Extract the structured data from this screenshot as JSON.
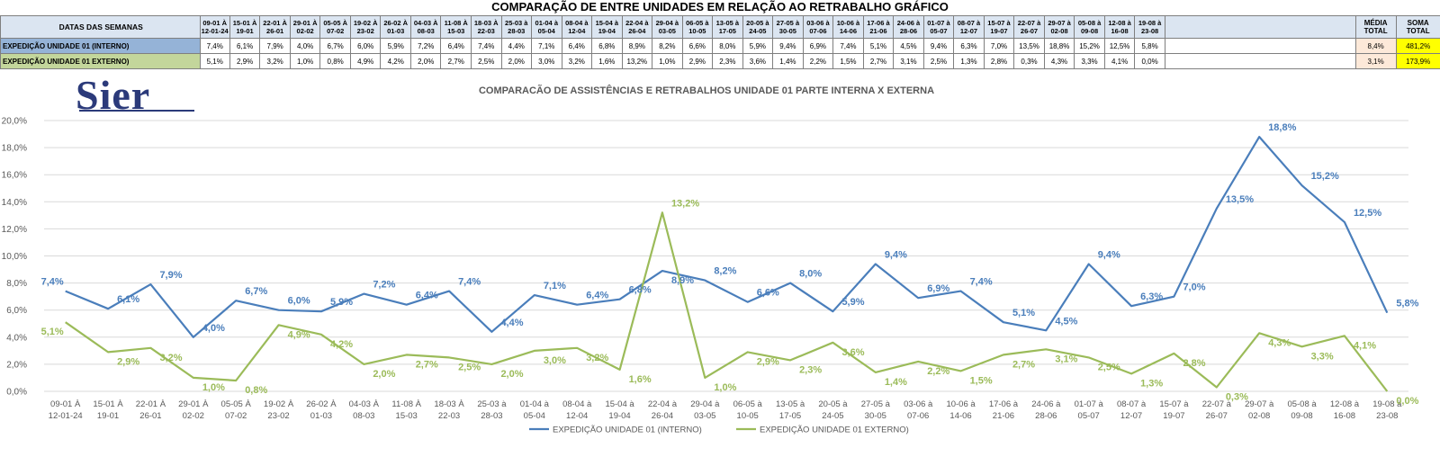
{
  "sheet_title": "COMPARAÇÃO DE ENTRE UNIDADES EM RELAÇÃO AO RETRABALHO GRÁFICO",
  "table": {
    "header_label": "DATAS DAS SEMANAS",
    "week_headers": [
      [
        "09-01 À",
        "12-01-24"
      ],
      [
        "15-01 À",
        "19-01"
      ],
      [
        "22-01 À",
        "26-01"
      ],
      [
        "29-01 À",
        "02-02"
      ],
      [
        "05-05 À",
        "07-02"
      ],
      [
        "19-02 À",
        "23-02"
      ],
      [
        "26-02 À",
        "01-03"
      ],
      [
        "04-03 À",
        "08-03"
      ],
      [
        "11-08 À",
        "15-03"
      ],
      [
        "18-03 À",
        "22-03"
      ],
      [
        "25-03 à",
        "28-03"
      ],
      [
        "01-04 à",
        "05-04"
      ],
      [
        "08-04 à",
        "12-04"
      ],
      [
        "15-04 à",
        "19-04"
      ],
      [
        "22-04 à",
        "26-04"
      ],
      [
        "29-04 à",
        "03-05"
      ],
      [
        "06-05 à",
        "10-05"
      ],
      [
        "13-05 à",
        "17-05"
      ],
      [
        "20-05 à",
        "24-05"
      ],
      [
        "27-05 à",
        "30-05"
      ],
      [
        "03-06 à",
        "07-06"
      ],
      [
        "10-06 à",
        "14-06"
      ],
      [
        "17-06 à",
        "21-06"
      ],
      [
        "24-06 à",
        "28-06"
      ],
      [
        "01-07 à",
        "05-07"
      ],
      [
        "08-07 à",
        "12-07"
      ],
      [
        "15-07 à",
        "19-07"
      ],
      [
        "22-07 à",
        "26-07"
      ],
      [
        "29-07 à",
        "02-08"
      ],
      [
        "05-08 à",
        "09-08"
      ],
      [
        "12-08 à",
        "16-08"
      ],
      [
        "19-08 à",
        "23-08"
      ]
    ],
    "total_header": [
      "MÉDIA",
      "TOTAL"
    ],
    "sum_header": [
      "SOMA",
      "TOTAL"
    ],
    "rows": [
      {
        "label": "EXPEDIÇÃO UNIDADE 01 (INTERNO)",
        "cells": [
          "7,4%",
          "6,1%",
          "7,9%",
          "4,0%",
          "6,7%",
          "6,0%",
          "5,9%",
          "7,2%",
          "6,4%",
          "7,4%",
          "4,4%",
          "7,1%",
          "6,4%",
          "6,8%",
          "8,9%",
          "8,2%",
          "6,6%",
          "8,0%",
          "5,9%",
          "9,4%",
          "6,9%",
          "7,4%",
          "5,1%",
          "4,5%",
          "9,4%",
          "6,3%",
          "7,0%",
          "13,5%",
          "18,8%",
          "15,2%",
          "12,5%",
          "5,8%"
        ],
        "avg": "8,4%",
        "sum": "481,2%"
      },
      {
        "label": "EXPEDIÇÃO UNIDADE 01 EXTERNO)",
        "cells": [
          "5,1%",
          "2,9%",
          "3,2%",
          "1,0%",
          "0,8%",
          "4,9%",
          "4,2%",
          "2,0%",
          "2,7%",
          "2,5%",
          "2,0%",
          "3,0%",
          "3,2%",
          "1,6%",
          "13,2%",
          "1,0%",
          "2,9%",
          "2,3%",
          "3,6%",
          "1,4%",
          "2,2%",
          "1,5%",
          "2,7%",
          "3,1%",
          "2,5%",
          "1,3%",
          "2,8%",
          "0,3%",
          "4,3%",
          "3,3%",
          "4,1%",
          "0,0%"
        ],
        "avg": "3,1%",
        "sum": "173,9%"
      }
    ]
  },
  "logo_text": "Sier",
  "chart_data": {
    "type": "line",
    "title": "COMPARACÃO DE ASSISTÊNCIAS E RETRABALHOS UNIDADE 01 PARTE INTERNA X EXTERNA",
    "categories": [
      [
        "09-01 À",
        "12-01-24"
      ],
      [
        "15-01 À",
        "19-01"
      ],
      [
        "22-01 À",
        "26-01"
      ],
      [
        "29-01 À",
        "02-02"
      ],
      [
        "05-05 À",
        "07-02"
      ],
      [
        "19-02 À",
        "23-02"
      ],
      [
        "26-02 À",
        "01-03"
      ],
      [
        "04-03 À",
        "08-03"
      ],
      [
        "11-08 À",
        "15-03"
      ],
      [
        "18-03 À",
        "22-03"
      ],
      [
        "25-03 à",
        "28-03"
      ],
      [
        "01-04 à",
        "05-04"
      ],
      [
        "08-04 à",
        "12-04"
      ],
      [
        "15-04 à",
        "19-04"
      ],
      [
        "22-04 à",
        "26-04"
      ],
      [
        "29-04 à",
        "03-05"
      ],
      [
        "06-05 à",
        "10-05"
      ],
      [
        "13-05 à",
        "17-05"
      ],
      [
        "20-05 à",
        "24-05"
      ],
      [
        "27-05 à",
        "30-05"
      ],
      [
        "03-06 à",
        "07-06"
      ],
      [
        "10-06 à",
        "14-06"
      ],
      [
        "17-06 à",
        "21-06"
      ],
      [
        "24-06 à",
        "28-06"
      ],
      [
        "01-07 à",
        "05-07"
      ],
      [
        "08-07 à",
        "12-07"
      ],
      [
        "15-07 à",
        "19-07"
      ],
      [
        "22-07 à",
        "26-07"
      ],
      [
        "29-07 à",
        "02-08"
      ],
      [
        "05-08 à",
        "09-08"
      ],
      [
        "12-08 à",
        "16-08"
      ],
      [
        "19-08 à",
        "23-08"
      ]
    ],
    "ylim": [
      0,
      20
    ],
    "yticks": [
      "0,0%",
      "2,0%",
      "4,0%",
      "6,0%",
      "8,0%",
      "10,0%",
      "12,0%",
      "14,0%",
      "16,0%",
      "18,0%",
      "20,0%"
    ],
    "grid": true,
    "legend_position": "bottom",
    "series": [
      {
        "name": "EXPEDIÇÃO UNIDADE 01 (INTERNO)",
        "color": "#4a7ebb",
        "values": [
          7.4,
          6.1,
          7.9,
          4.0,
          6.7,
          6.0,
          5.9,
          7.2,
          6.4,
          7.4,
          4.4,
          7.1,
          6.4,
          6.8,
          8.9,
          8.2,
          6.6,
          8.0,
          5.9,
          9.4,
          6.9,
          7.4,
          5.1,
          4.5,
          9.4,
          6.3,
          7.0,
          13.5,
          18.8,
          15.2,
          12.5,
          5.8
        ],
        "labels": [
          "7,4%",
          "6,1%",
          "7,9%",
          "4,0%",
          "6,7%",
          "6,0%",
          "5,9%",
          "7,2%",
          "6,4%",
          "7,4%",
          "4,4%",
          "7,1%",
          "6,4%",
          "6,8%",
          "8,9%",
          "8,2%",
          "6,6%",
          "8,0%",
          "5,9%",
          "9,4%",
          "6,9%",
          "7,4%",
          "5,1%",
          "4,5%",
          "9,4%",
          "6,3%",
          "7,0%",
          "13,5%",
          "18,8%",
          "15,2%",
          "12,5%",
          "5,8%"
        ]
      },
      {
        "name": "EXPEDIÇÃO UNIDADE 01 EXTERNO)",
        "color": "#9bbb59",
        "values": [
          5.1,
          2.9,
          3.2,
          1.0,
          0.8,
          4.9,
          4.2,
          2.0,
          2.7,
          2.5,
          2.0,
          3.0,
          3.2,
          1.6,
          13.2,
          1.0,
          2.9,
          2.3,
          3.6,
          1.4,
          2.2,
          1.5,
          2.7,
          3.1,
          2.5,
          1.3,
          2.8,
          0.3,
          4.3,
          3.3,
          4.1,
          0.0
        ],
        "labels": [
          "5,1%",
          "2,9%",
          "3,2%",
          "1,0%",
          "0,8%",
          "4,9%",
          "4,2%",
          "2,0%",
          "2,7%",
          "2,5%",
          "2,0%",
          "3,0%",
          "3,2%",
          "1,6%",
          "13,2%",
          "1,0%",
          "2,9%",
          "2,3%",
          "3,6%",
          "1,4%",
          "2,2%",
          "1,5%",
          "2,7%",
          "3,1%",
          "2,5%",
          "1,3%",
          "2,8%",
          "0,3%",
          "4,3%",
          "3,3%",
          "4,1%",
          "0,0%"
        ]
      }
    ]
  }
}
